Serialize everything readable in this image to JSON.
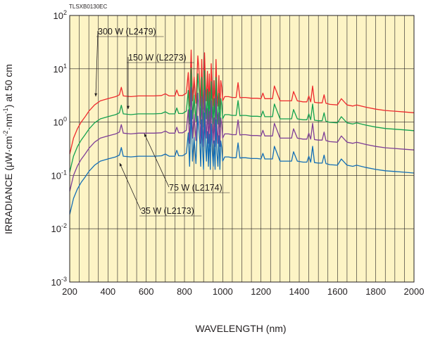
{
  "chart_data": {
    "type": "line",
    "figure_code": "TLSXB0130EC",
    "xlabel": "WAVELENGTH (nm)",
    "ylabel": {
      "prefix": "IRRADIANCE (μW·cm",
      "sup1": "-2",
      "mid": "·nm",
      "sup2": "-1",
      "suffix": ") at 50 cm"
    },
    "xlim": [
      200,
      2000
    ],
    "xticks": [
      "200",
      "400",
      "600",
      "800",
      "1000",
      "1200",
      "1400",
      "1600",
      "1800",
      "2000"
    ],
    "y_scale": "log",
    "ylim": [
      0.001,
      100
    ],
    "yticks": [
      {
        "base": "10",
        "exp": "2"
      },
      {
        "base": "10",
        "exp": "1"
      },
      {
        "base": "10",
        "exp": "0"
      },
      {
        "base": "10",
        "exp": "-1"
      },
      {
        "base": "10",
        "exp": "-2"
      },
      {
        "base": "10",
        "exp": "-3"
      }
    ],
    "grid": true,
    "background": "#fdf4c5",
    "series": [
      {
        "name": "300 W (L2479)",
        "color": "#ee2a2e",
        "scale": 5.0,
        "labels": [
          {
            "text": "300 W (L2479)"
          }
        ]
      },
      {
        "name": "150 W (L2273)",
        "color": "#13a150",
        "scale": 2.3,
        "labels": [
          {
            "text": "150 W (L2273)"
          }
        ]
      },
      {
        "name": "75 W (L2174)",
        "color": "#7e3f98",
        "scale": 1.0,
        "labels": [
          {
            "text": "75 W (L2174)"
          }
        ]
      },
      {
        "name": "35 W (L2173)",
        "color": "#136eb6",
        "scale": 0.37,
        "labels": [
          {
            "text": "35 W (L2173)"
          }
        ]
      }
    ],
    "x": [
      200,
      220,
      240,
      260,
      280,
      300,
      330,
      360,
      400,
      440,
      460,
      470,
      480,
      520,
      560,
      600,
      640,
      680,
      700,
      720,
      750,
      760,
      770,
      790,
      810,
      820,
      827,
      835,
      842,
      850,
      860,
      870,
      880,
      885,
      890,
      895,
      900,
      905,
      910,
      915,
      920,
      925,
      930,
      935,
      940,
      945,
      950,
      955,
      960,
      965,
      970,
      975,
      980,
      985,
      990,
      995,
      1000,
      1010,
      1030,
      1050,
      1070,
      1080,
      1090,
      1100,
      1120,
      1150,
      1180,
      1200,
      1210,
      1220,
      1250,
      1260,
      1270,
      1300,
      1340,
      1360,
      1370,
      1390,
      1420,
      1440,
      1450,
      1460,
      1470,
      1480,
      1500,
      1520,
      1530,
      1540,
      1560,
      1600,
      1620,
      1650,
      1680,
      1700,
      1750,
      1800,
      1850,
      1900,
      1950,
      2000
    ],
    "y_profile": [
      0.05,
      0.1,
      0.15,
      0.2,
      0.25,
      0.32,
      0.42,
      0.5,
      0.55,
      0.6,
      0.65,
      0.9,
      0.62,
      0.6,
      0.62,
      0.62,
      0.62,
      0.63,
      0.68,
      0.62,
      0.62,
      0.8,
      0.63,
      0.63,
      0.7,
      1.7,
      0.4,
      4.5,
      0.5,
      1.4,
      0.45,
      3.5,
      1.2,
      0.4,
      3.0,
      0.8,
      0.35,
      4.0,
      1.0,
      0.5,
      1.8,
      0.4,
      1.6,
      0.35,
      2.5,
      0.8,
      0.4,
      1.2,
      0.35,
      3.0,
      0.7,
      0.4,
      1.5,
      0.35,
      1.2,
      0.9,
      0.5,
      0.6,
      0.6,
      0.58,
      0.58,
      1.1,
      0.57,
      0.58,
      0.58,
      0.56,
      0.56,
      0.55,
      0.7,
      0.55,
      0.55,
      0.55,
      0.95,
      0.5,
      0.5,
      0.5,
      0.75,
      0.5,
      0.48,
      0.48,
      0.62,
      0.48,
      0.95,
      0.47,
      0.46,
      0.46,
      0.65,
      0.45,
      0.43,
      0.42,
      0.55,
      0.42,
      0.4,
      0.42,
      0.38,
      0.35,
      0.33,
      0.32,
      0.31,
      0.3
    ]
  }
}
